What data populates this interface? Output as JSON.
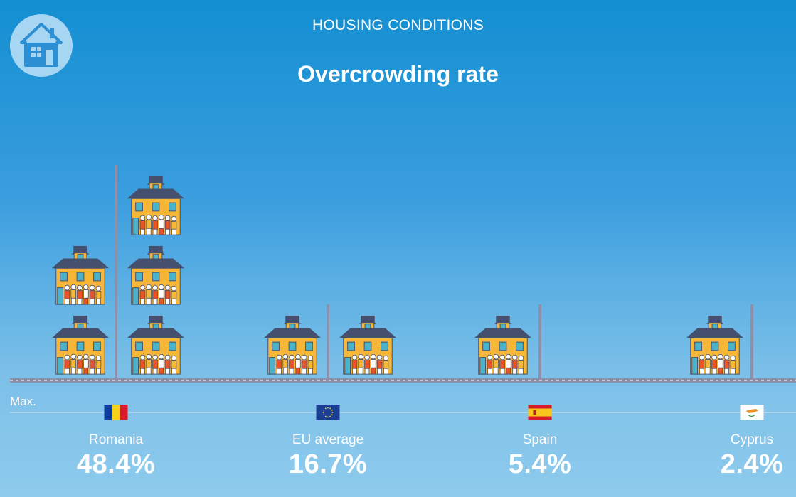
{
  "header": {
    "kicker": "HOUSING CONDITIONS",
    "title": "Overcrowding rate",
    "logo_icon": "house-icon"
  },
  "max_label": "Max.",
  "colors": {
    "house_body": "#f6b738",
    "house_roof": "#45506f",
    "road": "#8e8fa8",
    "baseline": "#cfe6f5"
  },
  "chart_data": {
    "type": "bar",
    "categories": [
      "Romania",
      "EU average",
      "Spain",
      "Cyprus"
    ],
    "values": [
      48.4,
      16.7,
      5.4,
      2.4
    ],
    "value_labels": [
      "48.4%",
      "16.7%",
      "5.4%",
      "2.4%"
    ],
    "flags": [
      "flag-romania-icon",
      "flag-eu-icon",
      "flag-spain-icon",
      "flag-cyprus-icon"
    ],
    "unit": "%"
  }
}
